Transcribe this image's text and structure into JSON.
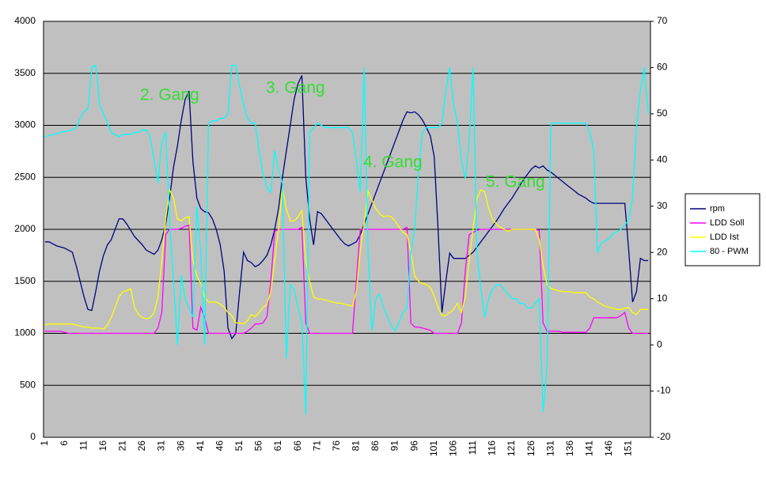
{
  "chart_data": {
    "type": "line",
    "categories": [
      1,
      null,
      null,
      null,
      null,
      6,
      null,
      null,
      null,
      null,
      11,
      null,
      null,
      null,
      null,
      16,
      null,
      null,
      null,
      null,
      21,
      null,
      null,
      null,
      null,
      26,
      null,
      null,
      null,
      null,
      31,
      null,
      null,
      null,
      null,
      36,
      null,
      null,
      null,
      null,
      41,
      null,
      null,
      null,
      null,
      46,
      null,
      null,
      null,
      null,
      51,
      null,
      null,
      null,
      null,
      56,
      null,
      null,
      null,
      null,
      61,
      null,
      null,
      null,
      null,
      66,
      null,
      null,
      null,
      null,
      71,
      null,
      null,
      null,
      null,
      76,
      null,
      null,
      null,
      null,
      81,
      null,
      null,
      null,
      null,
      86,
      null,
      null,
      null,
      null,
      91,
      null,
      null,
      null,
      null,
      96,
      null,
      null,
      null,
      null,
      101,
      null,
      null,
      null,
      null,
      106,
      null,
      null,
      null,
      null,
      111,
      null,
      null,
      null,
      null,
      116,
      null,
      null,
      null,
      null,
      121,
      null,
      null,
      null,
      null,
      126,
      null,
      null,
      null,
      null,
      131,
      null,
      null,
      null,
      null,
      136,
      null,
      null,
      null,
      null,
      141,
      null,
      null,
      null,
      null,
      146,
      null,
      null,
      null,
      null,
      151,
      null,
      null,
      null,
      null,
      null
    ],
    "series": [
      {
        "name": "rpm",
        "color": "#000080",
        "values": [
          1880,
          1880,
          1860,
          1840,
          1830,
          1820,
          1800,
          1780,
          1650,
          1500,
          1350,
          1230,
          1220,
          1400,
          1600,
          1750,
          1850,
          1900,
          2000,
          2100,
          2100,
          2050,
          1990,
          1930,
          1890,
          1850,
          1800,
          1780,
          1760,
          1800,
          1900,
          2050,
          2300,
          2600,
          2800,
          3050,
          3250,
          3330,
          2650,
          2300,
          2200,
          2170,
          2160,
          2100,
          2000,
          1850,
          1600,
          1050,
          950,
          1000,
          1400,
          1780,
          1700,
          1680,
          1640,
          1660,
          1700,
          1750,
          1850,
          2000,
          2200,
          2500,
          2750,
          3000,
          3250,
          3400,
          3480,
          2500,
          2100,
          1850,
          2170,
          2150,
          2100,
          2050,
          2000,
          1950,
          1900,
          1860,
          1840,
          1860,
          1880,
          1950,
          2050,
          2150,
          2250,
          2350,
          2450,
          2550,
          2650,
          2750,
          2850,
          2950,
          3050,
          3130,
          3120,
          3130,
          3100,
          3050,
          2980,
          2900,
          2700,
          2000,
          1200,
          1500,
          1770,
          1720,
          1720,
          1720,
          1720,
          1750,
          1780,
          1830,
          1880,
          1930,
          1980,
          2030,
          2080,
          2140,
          2200,
          2250,
          2300,
          2360,
          2420,
          2480,
          2530,
          2580,
          2610,
          2590,
          2610,
          2570,
          2550,
          2520,
          2490,
          2460,
          2430,
          2400,
          2370,
          2340,
          2320,
          2300,
          2270,
          2250,
          2250,
          2250,
          2250,
          2250,
          2250,
          2250,
          2250,
          2250,
          1800,
          1300,
          1400,
          1720,
          1700,
          1700
        ]
      },
      {
        "name": "LDD Soll",
        "color": "#ff00ff",
        "values": [
          1020,
          1020,
          1020,
          1020,
          1020,
          1010,
          1000,
          1000,
          1000,
          1000,
          1000,
          1000,
          1000,
          1000,
          1000,
          1000,
          1000,
          1000,
          1000,
          1000,
          1000,
          1000,
          1000,
          1000,
          1000,
          1000,
          1000,
          1000,
          1000,
          1050,
          1200,
          1950,
          2000,
          2000,
          2000,
          2010,
          2030,
          2040,
          1050,
          1030,
          1250,
          1150,
          1000,
          1000,
          1000,
          1000,
          1000,
          1000,
          1000,
          1000,
          1000,
          1000,
          1020,
          1050,
          1090,
          1090,
          1100,
          1160,
          1500,
          1980,
          2000,
          2000,
          2000,
          2000,
          2000,
          2000,
          2020,
          1100,
          1000,
          1000,
          1000,
          1000,
          1000,
          1000,
          1000,
          1000,
          1000,
          1000,
          1000,
          1000,
          1500,
          2000,
          2000,
          2000,
          2000,
          2000,
          2000,
          2000,
          2000,
          2000,
          2000,
          2000,
          2000,
          2020,
          1100,
          1060,
          1060,
          1050,
          1040,
          1030,
          1000,
          1000,
          1000,
          1000,
          1000,
          1000,
          1000,
          1100,
          1600,
          1950,
          1970,
          1990,
          2000,
          2000,
          2000,
          2000,
          2000,
          2000,
          2000,
          2000,
          2000,
          2000,
          2000,
          2000,
          2000,
          2000,
          2000,
          1990,
          1100,
          1020,
          1020,
          1020,
          1020,
          1010,
          1010,
          1010,
          1010,
          1010,
          1010,
          1010,
          1050,
          1150,
          1150,
          1150,
          1150,
          1150,
          1150,
          1150,
          1170,
          1200,
          1050,
          1000,
          1000,
          1000,
          1000,
          1000
        ]
      },
      {
        "name": "LDD Ist",
        "color": "#ffff00",
        "values": [
          1080,
          1090,
          1090,
          1090,
          1090,
          1090,
          1090,
          1090,
          1080,
          1070,
          1060,
          1060,
          1050,
          1050,
          1050,
          1040,
          1080,
          1150,
          1250,
          1350,
          1400,
          1410,
          1430,
          1250,
          1180,
          1150,
          1140,
          1150,
          1200,
          1350,
          1700,
          2100,
          2380,
          2300,
          2100,
          2080,
          2110,
          2120,
          1700,
          1550,
          1480,
          1350,
          1300,
          1300,
          1300,
          1280,
          1250,
          1200,
          1170,
          1100,
          1100,
          1090,
          1120,
          1180,
          1160,
          1200,
          1250,
          1280,
          1400,
          1700,
          2000,
          2400,
          2200,
          2080,
          2080,
          2120,
          2180,
          1700,
          1500,
          1350,
          1330,
          1330,
          1320,
          1310,
          1300,
          1290,
          1290,
          1280,
          1270,
          1260,
          1400,
          1800,
          2050,
          2370,
          2280,
          2200,
          2150,
          2120,
          2130,
          2120,
          2080,
          2020,
          1970,
          1950,
          1780,
          1550,
          1500,
          1480,
          1470,
          1440,
          1360,
          1250,
          1170,
          1170,
          1200,
          1230,
          1290,
          1200,
          1350,
          1700,
          2000,
          2300,
          2380,
          2360,
          2200,
          2100,
          2050,
          2020,
          2000,
          1980,
          2000,
          2000,
          2000,
          2000,
          2000,
          2000,
          2000,
          1900,
          1650,
          1470,
          1430,
          1420,
          1410,
          1400,
          1400,
          1400,
          1390,
          1390,
          1390,
          1390,
          1350,
          1330,
          1300,
          1280,
          1260,
          1250,
          1240,
          1230,
          1230,
          1240,
          1250,
          1200,
          1180,
          1230,
          1230,
          1230
        ]
      },
      {
        "name": "80 - PWM",
        "color": "#00ffff",
        "axis": "y2",
        "values": [
          45,
          45.3,
          45.5,
          45.7,
          46,
          46.2,
          46.3,
          46.5,
          47,
          49,
          50.5,
          51,
          60,
          60.5,
          52,
          50,
          48,
          46,
          45.5,
          45,
          45.5,
          45.5,
          45.5,
          46,
          46,
          46.5,
          46.5,
          45,
          40,
          35,
          44,
          46,
          27,
          14,
          0,
          15,
          10,
          8,
          6,
          30,
          20,
          0,
          48,
          48.5,
          48.5,
          49,
          49,
          50,
          60.5,
          60.5,
          56,
          52,
          49,
          48,
          48,
          42,
          37,
          34,
          33,
          42,
          38,
          35,
          -3,
          13,
          12,
          8,
          5,
          -15,
          46,
          47,
          48,
          47.5,
          47,
          47,
          47,
          47,
          47,
          47,
          47,
          46,
          40,
          33,
          60,
          20,
          3,
          10,
          11,
          8,
          6,
          4,
          3,
          5,
          7,
          8,
          20,
          25,
          38,
          46,
          47,
          47,
          47,
          47,
          48,
          55,
          60,
          52,
          48,
          40,
          36,
          44,
          60,
          20,
          12,
          6,
          10,
          12,
          13,
          13,
          12,
          11,
          10,
          10,
          9,
          9,
          8,
          8,
          9,
          10,
          -14.5,
          -5,
          48,
          48,
          48,
          48,
          48,
          48,
          48,
          48,
          48,
          48,
          46,
          42,
          20,
          22,
          22.5,
          23,
          24,
          24.5,
          25,
          26,
          27,
          32,
          47,
          55,
          60,
          50
        ]
      }
    ],
    "ylim": [
      0,
      4000
    ],
    "yticks": [
      0,
      500,
      1000,
      1500,
      2000,
      2500,
      3000,
      3500,
      4000
    ],
    "y2lim": [
      -20,
      70
    ],
    "y2ticks": [
      -20,
      -10,
      0,
      10,
      20,
      30,
      40,
      50,
      60,
      70
    ],
    "grid": true,
    "legend": "right",
    "annotations": [
      {
        "text": "2. Gang",
        "color": "#33dd33"
      },
      {
        "text": "3. Gang",
        "color": "#33dd33"
      },
      {
        "text": "4. Gang",
        "color": "#33dd33"
      },
      {
        "text": "5. Gang",
        "color": "#33dd33"
      }
    ]
  }
}
